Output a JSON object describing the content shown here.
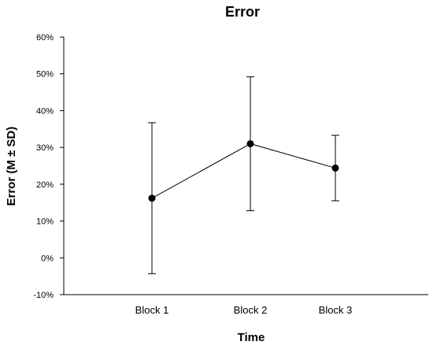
{
  "chart_data": {
    "type": "line",
    "title": "Error",
    "xlabel": "Time",
    "ylabel": "Error (M ± SD)",
    "categories": [
      "Block 1",
      "Block 2",
      "Block 3"
    ],
    "series": [
      {
        "values": [
          0.162,
          0.31,
          0.244
        ],
        "errors": [
          0.205,
          0.182,
          0.089
        ]
      }
    ],
    "ylim": [
      -0.1,
      0.6
    ],
    "yticks": [
      -0.1,
      0,
      0.1,
      0.2,
      0.3,
      0.4,
      0.5,
      0.6
    ],
    "ytick_labels": [
      "-10%",
      "0%",
      "10%",
      "20%",
      "30%",
      "40%",
      "50%",
      "60%"
    ],
    "grid": false,
    "legend": "none",
    "colors": {
      "line": "#000000",
      "marker": "#000000"
    }
  }
}
